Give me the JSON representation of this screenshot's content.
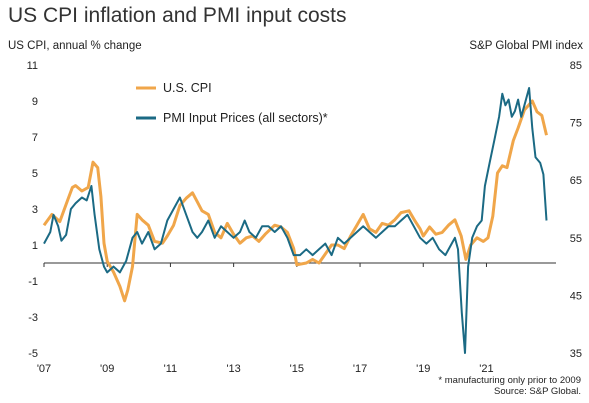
{
  "chart_data": {
    "type": "line",
    "title": "US CPI inflation and PMI input costs",
    "left_axis_label": "US CPI, annual % change",
    "right_axis_label": "S&P Global PMI index",
    "footnote": "* manufacturing only prior to 2009",
    "source": "Source: S&P Global.",
    "x_range": [
      2007.0,
      2023.2
    ],
    "x_ticks": [
      "'07",
      "'09",
      "'11",
      "'13",
      "'15",
      "'17",
      "'19",
      "'21"
    ],
    "y_left": {
      "range": [
        -5,
        11
      ],
      "ticks": [
        "11",
        "9",
        "7",
        "5",
        "3",
        "1",
        "-1",
        "-3",
        "-5"
      ]
    },
    "y_right": {
      "range": [
        35,
        85
      ],
      "ticks": [
        "85",
        "75",
        "65",
        "55",
        "45",
        "35"
      ]
    },
    "zero_line_left": 0,
    "legend": {
      "placement": "top-left"
    },
    "series": [
      {
        "name": "U.S. CPI",
        "axis": "left",
        "color": "#f0a64a",
        "points": [
          [
            2007.0,
            2.1
          ],
          [
            2007.25,
            2.7
          ],
          [
            2007.5,
            2.3
          ],
          [
            2007.75,
            3.5
          ],
          [
            2007.9,
            4.2
          ],
          [
            2008.0,
            4.3
          ],
          [
            2008.2,
            4.0
          ],
          [
            2008.4,
            4.2
          ],
          [
            2008.55,
            5.6
          ],
          [
            2008.7,
            5.3
          ],
          [
            2008.8,
            3.7
          ],
          [
            2008.9,
            1.1
          ],
          [
            2009.0,
            0.1
          ],
          [
            2009.2,
            -0.5
          ],
          [
            2009.4,
            -1.3
          ],
          [
            2009.55,
            -2.1
          ],
          [
            2009.65,
            -1.5
          ],
          [
            2009.8,
            -0.2
          ],
          [
            2009.95,
            2.7
          ],
          [
            2010.1,
            2.4
          ],
          [
            2010.3,
            2.1
          ],
          [
            2010.5,
            1.2
          ],
          [
            2010.75,
            1.1
          ],
          [
            2010.9,
            1.5
          ],
          [
            2011.1,
            2.1
          ],
          [
            2011.3,
            3.2
          ],
          [
            2011.5,
            3.6
          ],
          [
            2011.7,
            3.9
          ],
          [
            2011.85,
            3.4
          ],
          [
            2012.0,
            2.9
          ],
          [
            2012.2,
            2.7
          ],
          [
            2012.4,
            1.7
          ],
          [
            2012.6,
            1.4
          ],
          [
            2012.8,
            2.2
          ],
          [
            2013.0,
            1.6
          ],
          [
            2013.2,
            1.1
          ],
          [
            2013.4,
            1.4
          ],
          [
            2013.6,
            1.5
          ],
          [
            2013.8,
            1.2
          ],
          [
            2014.0,
            1.6
          ],
          [
            2014.3,
            2.1
          ],
          [
            2014.5,
            2.0
          ],
          [
            2014.7,
            1.7
          ],
          [
            2014.9,
            0.8
          ],
          [
            2015.0,
            -0.1
          ],
          [
            2015.3,
            0.0
          ],
          [
            2015.5,
            0.2
          ],
          [
            2015.7,
            0.0
          ],
          [
            2015.9,
            0.5
          ],
          [
            2016.1,
            1.0
          ],
          [
            2016.3,
            1.0
          ],
          [
            2016.5,
            0.8
          ],
          [
            2016.7,
            1.5
          ],
          [
            2016.9,
            2.1
          ],
          [
            2017.1,
            2.7
          ],
          [
            2017.3,
            1.9
          ],
          [
            2017.5,
            1.7
          ],
          [
            2017.7,
            2.2
          ],
          [
            2017.9,
            2.1
          ],
          [
            2018.1,
            2.4
          ],
          [
            2018.3,
            2.8
          ],
          [
            2018.55,
            2.9
          ],
          [
            2018.75,
            2.3
          ],
          [
            2018.9,
            1.9
          ],
          [
            2019.0,
            1.5
          ],
          [
            2019.2,
            2.0
          ],
          [
            2019.4,
            1.6
          ],
          [
            2019.6,
            1.7
          ],
          [
            2019.8,
            2.1
          ],
          [
            2020.0,
            2.4
          ],
          [
            2020.2,
            1.5
          ],
          [
            2020.35,
            0.2
          ],
          [
            2020.5,
            1.0
          ],
          [
            2020.7,
            1.4
          ],
          [
            2020.9,
            1.2
          ],
          [
            2021.05,
            1.4
          ],
          [
            2021.2,
            2.6
          ],
          [
            2021.35,
            5.0
          ],
          [
            2021.5,
            5.4
          ],
          [
            2021.65,
            5.3
          ],
          [
            2021.85,
            6.8
          ],
          [
            2022.0,
            7.5
          ],
          [
            2022.2,
            8.5
          ],
          [
            2022.45,
            9.0
          ],
          [
            2022.6,
            8.4
          ],
          [
            2022.75,
            8.2
          ],
          [
            2022.9,
            7.1
          ]
        ]
      },
      {
        "name": "PMI Input Prices (all sectors)*",
        "axis": "right",
        "color": "#1b6a84",
        "points": [
          [
            2007.0,
            54
          ],
          [
            2007.2,
            56
          ],
          [
            2007.3,
            59
          ],
          [
            2007.45,
            57
          ],
          [
            2007.55,
            54.5
          ],
          [
            2007.7,
            55.5
          ],
          [
            2007.85,
            60
          ],
          [
            2008.0,
            61
          ],
          [
            2008.2,
            62
          ],
          [
            2008.35,
            61.5
          ],
          [
            2008.5,
            64
          ],
          [
            2008.6,
            59
          ],
          [
            2008.75,
            53
          ],
          [
            2008.9,
            50
          ],
          [
            2009.0,
            49
          ],
          [
            2009.2,
            50
          ],
          [
            2009.4,
            49
          ],
          [
            2009.6,
            51
          ],
          [
            2009.8,
            55
          ],
          [
            2009.95,
            56
          ],
          [
            2010.1,
            54
          ],
          [
            2010.3,
            56
          ],
          [
            2010.5,
            53
          ],
          [
            2010.7,
            54
          ],
          [
            2010.9,
            58
          ],
          [
            2011.1,
            60
          ],
          [
            2011.3,
            62
          ],
          [
            2011.5,
            59
          ],
          [
            2011.7,
            56
          ],
          [
            2011.85,
            55
          ],
          [
            2012.0,
            56
          ],
          [
            2012.2,
            58
          ],
          [
            2012.4,
            55
          ],
          [
            2012.6,
            57
          ],
          [
            2012.8,
            56
          ],
          [
            2013.0,
            55
          ],
          [
            2013.2,
            56
          ],
          [
            2013.35,
            58
          ],
          [
            2013.5,
            56
          ],
          [
            2013.7,
            55
          ],
          [
            2013.9,
            57
          ],
          [
            2014.1,
            57
          ],
          [
            2014.3,
            56
          ],
          [
            2014.5,
            57
          ],
          [
            2014.7,
            55
          ],
          [
            2014.9,
            52
          ],
          [
            2015.1,
            52
          ],
          [
            2015.3,
            53
          ],
          [
            2015.5,
            52
          ],
          [
            2015.7,
            53
          ],
          [
            2015.9,
            54
          ],
          [
            2016.1,
            52
          ],
          [
            2016.3,
            55
          ],
          [
            2016.5,
            54
          ],
          [
            2016.7,
            55
          ],
          [
            2016.9,
            56
          ],
          [
            2017.1,
            57
          ],
          [
            2017.3,
            56
          ],
          [
            2017.5,
            55
          ],
          [
            2017.7,
            56
          ],
          [
            2017.9,
            57
          ],
          [
            2018.1,
            57
          ],
          [
            2018.3,
            58
          ],
          [
            2018.5,
            59
          ],
          [
            2018.7,
            57
          ],
          [
            2018.9,
            55
          ],
          [
            2019.1,
            54
          ],
          [
            2019.3,
            55
          ],
          [
            2019.5,
            53
          ],
          [
            2019.7,
            52
          ],
          [
            2019.9,
            54
          ],
          [
            2020.0,
            55
          ],
          [
            2020.1,
            53
          ],
          [
            2020.22,
            42
          ],
          [
            2020.32,
            35
          ],
          [
            2020.42,
            50
          ],
          [
            2020.55,
            55
          ],
          [
            2020.7,
            57
          ],
          [
            2020.85,
            58
          ],
          [
            2020.95,
            64
          ],
          [
            2021.1,
            68
          ],
          [
            2021.25,
            72
          ],
          [
            2021.4,
            76
          ],
          [
            2021.5,
            80
          ],
          [
            2021.6,
            78
          ],
          [
            2021.7,
            79
          ],
          [
            2021.8,
            76
          ],
          [
            2021.9,
            77
          ],
          [
            2022.0,
            79
          ],
          [
            2022.1,
            76
          ],
          [
            2022.2,
            78
          ],
          [
            2022.35,
            81
          ],
          [
            2022.45,
            74
          ],
          [
            2022.55,
            69
          ],
          [
            2022.7,
            68
          ],
          [
            2022.8,
            66
          ],
          [
            2022.9,
            58
          ]
        ]
      }
    ]
  }
}
